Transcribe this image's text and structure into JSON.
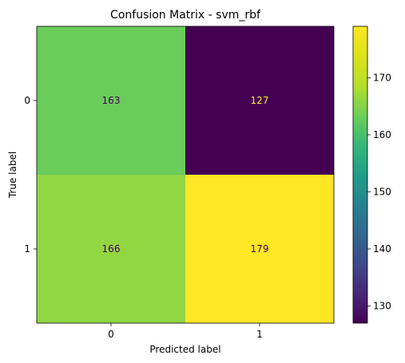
{
  "chart_data": {
    "type": "heatmap",
    "title": "Confusion Matrix - svm_rbf",
    "xlabel": "Predicted label",
    "ylabel": "True label",
    "x_categories": [
      "0",
      "1"
    ],
    "y_categories": [
      "0",
      "1"
    ],
    "matrix": [
      [
        163,
        127
      ],
      [
        166,
        179
      ]
    ],
    "colormap": "viridis",
    "colorbar": {
      "range": [
        127,
        179
      ],
      "ticks": [
        130,
        140,
        150,
        160,
        170
      ]
    },
    "cell_text_colors": {
      "dark": "#440154",
      "light": "#fde725"
    },
    "grid": false
  }
}
